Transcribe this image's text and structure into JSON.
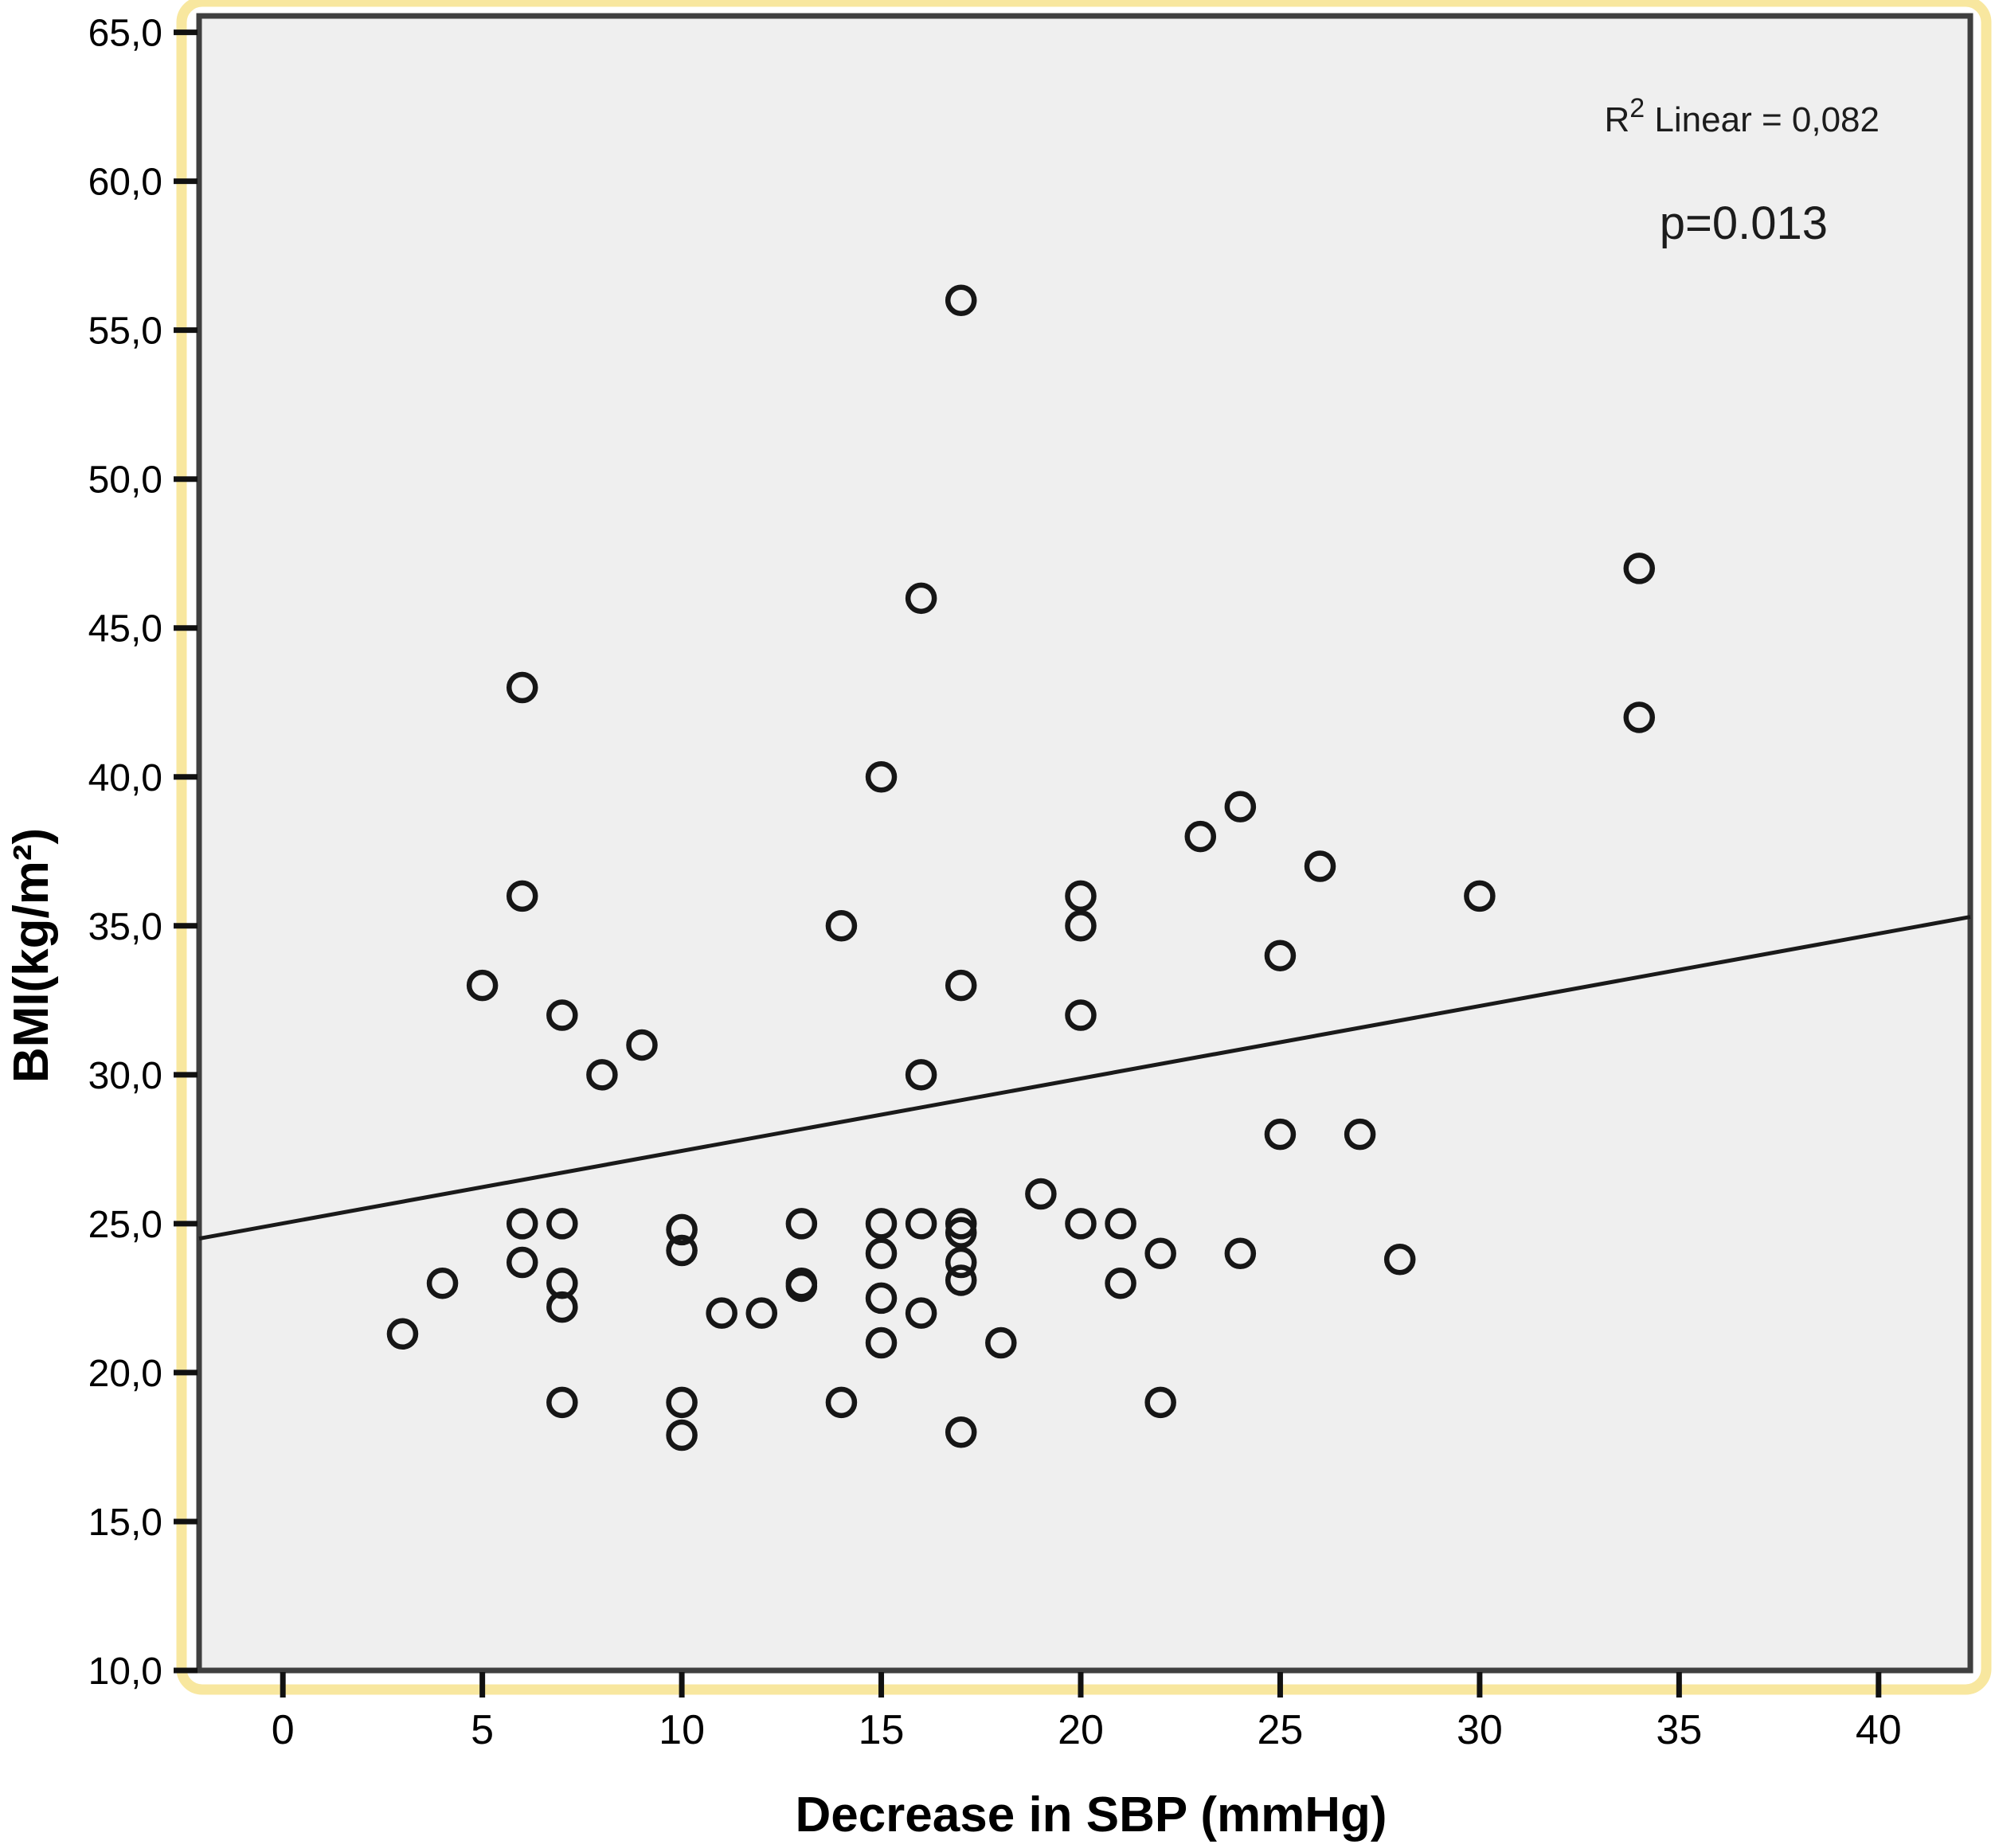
{
  "chart_data": {
    "type": "scatter",
    "title": "",
    "xlabel": "Decrease in SBP (mmHg)",
    "ylabel": "BMI(kg/m²)",
    "annotations": {
      "r2_base": "R",
      "r2_sup": "2",
      "r2_rest": " Linear = 0,082",
      "p_value": "p=0.013"
    },
    "x_domain": [
      -2.1,
      42.3
    ],
    "y_domain": [
      10,
      65.55
    ],
    "grid": false,
    "legend": "none",
    "x_ticks": [
      {
        "v": 0,
        "label": "0"
      },
      {
        "v": 5,
        "label": "5"
      },
      {
        "v": 10,
        "label": "10"
      },
      {
        "v": 15,
        "label": "15"
      },
      {
        "v": 20,
        "label": "20"
      },
      {
        "v": 25,
        "label": "25"
      },
      {
        "v": 30,
        "label": "30"
      },
      {
        "v": 35,
        "label": "35"
      },
      {
        "v": 40,
        "label": "40"
      }
    ],
    "y_ticks": [
      {
        "v": 65,
        "label": "65,0"
      },
      {
        "v": 60,
        "label": "60,0"
      },
      {
        "v": 55,
        "label": "55,0"
      },
      {
        "v": 50,
        "label": "50,0"
      },
      {
        "v": 45,
        "label": "45,0"
      },
      {
        "v": 40,
        "label": "40,0"
      },
      {
        "v": 35,
        "label": "35,0"
      },
      {
        "v": 30,
        "label": "30,0"
      },
      {
        "v": 25,
        "label": "25,0"
      },
      {
        "v": 20,
        "label": "20,0"
      },
      {
        "v": 15,
        "label": "15,0"
      },
      {
        "v": 10,
        "label": "10,0"
      }
    ],
    "points": [
      [
        17,
        56
      ],
      [
        34,
        47
      ],
      [
        16,
        46
      ],
      [
        6,
        43
      ],
      [
        34,
        42
      ],
      [
        15,
        40
      ],
      [
        24,
        39
      ],
      [
        23,
        38
      ],
      [
        26,
        37
      ],
      [
        6,
        36
      ],
      [
        20,
        36
      ],
      [
        30,
        36
      ],
      [
        14,
        35
      ],
      [
        20,
        35
      ],
      [
        25,
        34
      ],
      [
        5,
        33
      ],
      [
        17,
        33
      ],
      [
        7,
        32
      ],
      [
        20,
        32
      ],
      [
        9,
        31
      ],
      [
        8,
        30
      ],
      [
        16,
        30
      ],
      [
        25,
        28
      ],
      [
        27,
        28
      ],
      [
        19,
        26
      ],
      [
        6,
        25
      ],
      [
        7,
        25
      ],
      [
        13,
        25
      ],
      [
        15,
        25
      ],
      [
        16,
        25
      ],
      [
        17,
        25
      ],
      [
        20,
        25
      ],
      [
        21,
        25
      ],
      [
        10,
        24.8
      ],
      [
        17,
        24.7
      ],
      [
        10,
        24.1
      ],
      [
        15,
        24
      ],
      [
        22,
        24
      ],
      [
        24,
        24
      ],
      [
        28,
        23.8
      ],
      [
        6,
        23.7
      ],
      [
        17,
        23.7
      ],
      [
        4,
        23
      ],
      [
        7,
        23
      ],
      [
        13,
        23
      ],
      [
        13,
        22.9
      ],
      [
        17,
        23.1
      ],
      [
        21,
        23
      ],
      [
        15,
        22.5
      ],
      [
        7,
        22.2
      ],
      [
        11,
        22
      ],
      [
        12,
        22
      ],
      [
        16,
        22
      ],
      [
        3,
        21.3
      ],
      [
        15,
        21
      ],
      [
        18,
        21
      ],
      [
        14,
        19
      ],
      [
        7,
        19
      ],
      [
        10,
        19
      ],
      [
        22,
        19
      ],
      [
        17,
        18
      ],
      [
        10,
        17.9
      ]
    ],
    "trendline": {
      "x1": -2.1,
      "y1": 24.5,
      "x2": 42.3,
      "y2": 35.3
    },
    "colors": {
      "plot_bg": "#efefef",
      "outer_frame": "#f8e79f",
      "plot_border": "#3f3f3f",
      "marker_stroke": "#161616",
      "trend_stroke": "#1a1a1a"
    }
  }
}
